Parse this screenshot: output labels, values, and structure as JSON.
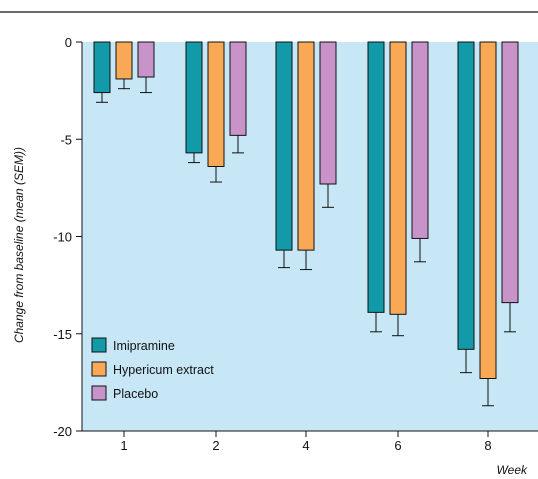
{
  "chart_data": {
    "type": "bar",
    "categories": [
      "1",
      "2",
      "4",
      "6",
      "8"
    ],
    "series": [
      {
        "name": "Imipramine",
        "color": "#129aa8",
        "values": [
          -2.6,
          -5.7,
          -10.7,
          -13.9,
          -15.8
        ],
        "sem": [
          0.5,
          0.5,
          0.9,
          1.0,
          1.2
        ]
      },
      {
        "name": "Hypericum extract",
        "color": "#f9a956",
        "values": [
          -1.9,
          -6.4,
          -10.7,
          -14.0,
          -17.3
        ],
        "sem": [
          0.5,
          0.8,
          1.0,
          1.1,
          1.4
        ]
      },
      {
        "name": "Placebo",
        "color": "#c893c8",
        "values": [
          -1.8,
          -4.8,
          -7.3,
          -10.1,
          -13.4
        ],
        "sem": [
          0.8,
          0.9,
          1.2,
          1.2,
          1.5
        ]
      }
    ],
    "xlabel": "Week",
    "ylabel": "Change from baseline (mean (SEM))",
    "ylim": [
      -20,
      0
    ],
    "yticks": [
      0,
      -5,
      -10,
      -15,
      -20
    ],
    "grid": false,
    "legend_position": "bottom-left",
    "plot_background": "#c7e6f6"
  }
}
